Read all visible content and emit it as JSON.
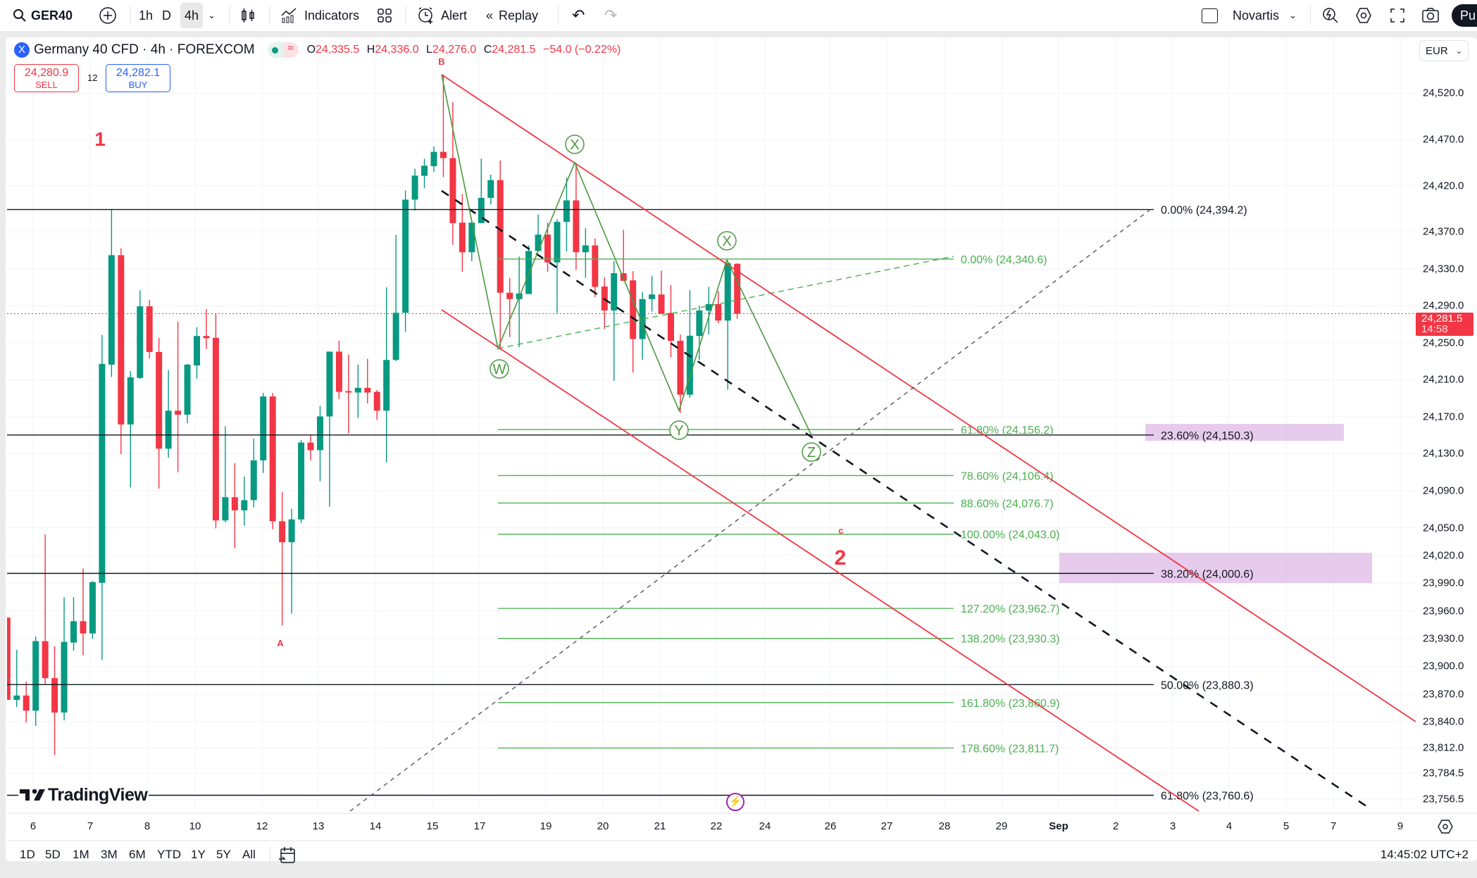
{
  "toolbar": {
    "symbol": "GER40",
    "intervals": [
      "1h",
      "D",
      "4h"
    ],
    "active_interval": "4h",
    "indicators_label": "Indicators",
    "alert_label": "Alert",
    "replay_label": "Replay",
    "watch_name": "Novartis",
    "publish_label": "Pu"
  },
  "legend": {
    "title": "Germany 40 CFD · 4h · FOREXCOM",
    "open_k": "O",
    "open": "24,335.5",
    "high_k": "H",
    "high": "24,336.0",
    "low_k": "L",
    "low": "24,276.0",
    "close_k": "C",
    "close": "24,281.5",
    "change": "−54.0 (−0.22%)"
  },
  "trade": {
    "sell_price": "24,280.9",
    "sell_label": "SELL",
    "spread": "12",
    "buy_price": "24,282.1",
    "buy_label": "BUY"
  },
  "price_axis": {
    "currency": "EUR",
    "current_price": "24,281.5",
    "countdown": "14:58"
  },
  "annotations": {
    "wave_1": "1",
    "wave_2": "2",
    "label_a": "A",
    "label_b": "B",
    "label_c": "c",
    "wxy": [
      "X",
      "W",
      "Y",
      "X",
      "Z"
    ]
  },
  "fib_green": [
    {
      "label": "0.00% (24,340.6)",
      "price": 24340.6
    },
    {
      "label": "61.80% (24,156.2)",
      "price": 24156.2
    },
    {
      "label": "78.60% (24,106.4)",
      "price": 24106.4
    },
    {
      "label": "88.60% (24,076.7)",
      "price": 24076.7
    },
    {
      "label": "100.00% (24,043.0)",
      "price": 24043.0
    },
    {
      "label": "127.20% (23,962.7)",
      "price": 23962.7
    },
    {
      "label": "138.20% (23,930.3)",
      "price": 23930.3
    },
    {
      "label": "161.80% (23,860.9)",
      "price": 23860.9
    },
    {
      "label": "178.60% (23,811.7)",
      "price": 23811.7
    }
  ],
  "fib_black": [
    {
      "label": "0.00% (24,394.2)",
      "price": 24394.2
    },
    {
      "label": "23.60% (24,150.3)",
      "price": 24150.3,
      "highlight": true
    },
    {
      "label": "38.20% (24,000.6)",
      "price": 24000.6,
      "highlight": true
    },
    {
      "label": "50.00% (23,880.3)",
      "price": 23880.3
    },
    {
      "label": "61.80% (23,760.6)",
      "price": 23760.6
    }
  ],
  "colors": {
    "up": "#089981",
    "down": "#f23645",
    "fib_green": "#4caf50",
    "channel": "#f23645",
    "highlight": "#e1bee7"
  },
  "branding": "TradingView",
  "bottom": {
    "ranges": [
      "1D",
      "5D",
      "1M",
      "3M",
      "6M",
      "YTD",
      "1Y",
      "5Y",
      "All"
    ],
    "clock": "14:45:02 UTC+2"
  },
  "chart_data": {
    "type": "candlestick",
    "title": "Germany 40 CFD · 4h · FOREXCOM",
    "x_tick_labels": [
      "6",
      "7",
      "8",
      "10",
      "12",
      "13",
      "14",
      "15",
      "17",
      "19",
      "20",
      "21",
      "22",
      "24",
      "26",
      "27",
      "28",
      "29",
      "Sep",
      "2",
      "3",
      "4",
      "5",
      "7",
      "9"
    ],
    "y_ticks": [
      24520.0,
      24470.0,
      24420.0,
      24370.0,
      24330.0,
      24290.0,
      24250.0,
      24210.0,
      24170.0,
      24130.0,
      24090.0,
      24050.0,
      24020.0,
      23990.0,
      23960.0,
      23930.0,
      23900.0,
      23870.0,
      23840.0,
      23812.0,
      23784.5,
      23756.5
    ],
    "y_tick_labels": [
      "24,520.0",
      "24,470.0",
      "24,420.0",
      "24,370.0",
      "24,330.0",
      "24,290.0",
      "24,250.0",
      "24,210.0",
      "24,170.0",
      "24,130.0",
      "24,090.0",
      "24,050.0",
      "24,020.0",
      "23,990.0",
      "23,960.0",
      "23,930.0",
      "23,900.0",
      "23,870.0",
      "23,840.0",
      "23,812.0",
      "23,784.5",
      "23,756.5"
    ],
    "ylim": [
      23740,
      24545
    ],
    "grid": true,
    "ohlc": [
      [
        23952.8,
        23952.8,
        23863.8,
        23863.8
      ],
      [
        23863.8,
        23917.9,
        23856.0,
        23868.5
      ],
      [
        23868.5,
        23883.4,
        23839.5,
        23852.1
      ],
      [
        23852.1,
        23932.4,
        23835.6,
        23927.3
      ],
      [
        23927.3,
        24043.0,
        23880.7,
        23887.3
      ],
      [
        23887.3,
        23921.8,
        23804.2,
        23850.1
      ],
      [
        23850.1,
        23974.8,
        23841.5,
        23926.5
      ],
      [
        23925.8,
        23974.8,
        23917.1,
        23948.9
      ],
      [
        23948.9,
        24006.1,
        23912.0,
        23935.6
      ],
      [
        23935.6,
        23992.4,
        23929.7,
        23991.2
      ],
      [
        23990.4,
        24258.6,
        23906.9,
        24227.2
      ],
      [
        24226.4,
        24394.2,
        24213.1,
        24344.8
      ],
      [
        24344.8,
        24352.3,
        24129.6,
        24161.7
      ],
      [
        24161.7,
        24219.4,
        24093.5,
        24212.7
      ],
      [
        24212.0,
        24306.8,
        24211.1,
        24289.5
      ],
      [
        24289.5,
        24296.6,
        24233.1,
        24240.1
      ],
      [
        24240.1,
        24255.4,
        24092.4,
        24135.5
      ],
      [
        24135.5,
        24220.5,
        24125.7,
        24176.6
      ],
      [
        24176.6,
        24272.7,
        24110.0,
        24172.3
      ],
      [
        24172.3,
        24227.2,
        24162.9,
        24226.4
      ],
      [
        24225.6,
        24266.8,
        24211.1,
        24257.4
      ],
      [
        24257.4,
        24286.4,
        24243.3,
        24255.0
      ],
      [
        24255.4,
        24281.7,
        24049.2,
        24057.9
      ],
      [
        24057.9,
        24159.8,
        24055.9,
        24083.0
      ],
      [
        24083.0,
        24119.8,
        24027.7,
        24068.8
      ],
      [
        24068.8,
        24105.3,
        24052.4,
        24079.8
      ],
      [
        24079.8,
        24146.5,
        24072.0,
        24122.9
      ],
      [
        24122.9,
        24195.8,
        24109.2,
        24192.0
      ],
      [
        24192.0,
        24195.8,
        24048.5,
        24057.0
      ],
      [
        24057.0,
        24088.4,
        23944.2,
        24034.3
      ],
      [
        24034.3,
        24070.4,
        23957.1,
        24059.0
      ],
      [
        24059.0,
        24144.9,
        24055.1,
        24142.1
      ],
      [
        24142.1,
        24150.4,
        24122.9,
        24133.9
      ],
      [
        24133.9,
        24181.7,
        24100.2,
        24170.4
      ],
      [
        24170.4,
        24240.5,
        24072.8,
        24240.5
      ],
      [
        24240.5,
        24252.3,
        24189.2,
        24197.0
      ],
      [
        24197.8,
        24237.4,
        24151.9,
        24196.2
      ],
      [
        24196.2,
        24226.4,
        24168.8,
        24201.3
      ],
      [
        24201.3,
        24232.7,
        24184.5,
        24196.2
      ],
      [
        24197.0,
        24199.0,
        24166.8,
        24176.6
      ],
      [
        24176.6,
        24309.9,
        24120.6,
        24231.5
      ],
      [
        24231.5,
        24366.9,
        24230.3,
        24282.5
      ],
      [
        24282.5,
        24414.8,
        24261.8,
        24404.9
      ],
      [
        24404.9,
        24438.3,
        24393.1,
        24430.9
      ],
      [
        24430.7,
        24449.2,
        24417.2,
        24441.6
      ],
      [
        24441.1,
        24462.4,
        24435.0,
        24456.6
      ],
      [
        24456.6,
        24540.4,
        24429.3,
        24449.8
      ],
      [
        24449.8,
        24510.3,
        24356.2,
        24379.5
      ],
      [
        24380.0,
        24410.9,
        24326.9,
        24348.0
      ],
      [
        24348.0,
        24382.7,
        24338.4,
        24380.0
      ],
      [
        24379.5,
        24449.2,
        24379.5,
        24406.8
      ],
      [
        24406.8,
        24432.0,
        24399.7,
        24426.0
      ],
      [
        24426.0,
        24447.3,
        24242.6,
        24304.2
      ],
      [
        24304.2,
        24320.3,
        24256.3,
        24297.3
      ],
      [
        24297.3,
        24343.3,
        24245.4,
        24303.4
      ],
      [
        24302.8,
        24355.4,
        24302.8,
        24349.4
      ],
      [
        24349.4,
        24388.8,
        24349.4,
        24367.1
      ],
      [
        24367.1,
        24380.0,
        24326.9,
        24337.0
      ],
      [
        24337.0,
        24383.6,
        24282.3,
        24380.8
      ],
      [
        24380.8,
        24428.7,
        24348.8,
        24404.1
      ],
      [
        24404.1,
        24443.8,
        24328.8,
        24348.0
      ],
      [
        24348.0,
        24374.0,
        24320.3,
        24355.4
      ],
      [
        24355.4,
        24363.0,
        24299.5,
        24310.5
      ],
      [
        24310.9,
        24320.6,
        24265.0,
        24285.0
      ],
      [
        24285.0,
        24338.4,
        24209.0,
        24325.3
      ],
      [
        24325.3,
        24372.3,
        24317.1,
        24317.1
      ],
      [
        24317.6,
        24327.5,
        24218.0,
        24254.1
      ],
      [
        24254.1,
        24305.0,
        24231.6,
        24297.3
      ],
      [
        24297.3,
        24322.5,
        24283.7,
        24302.3
      ],
      [
        24302.3,
        24328.0,
        24281.0,
        24281.5
      ],
      [
        24282.3,
        24312.4,
        24234.4,
        24252.2
      ],
      [
        24252.2,
        24259.0,
        24174.2,
        24193.9
      ],
      [
        24193.9,
        24306.9,
        24190.6,
        24257.7
      ],
      [
        24257.4,
        24290.5,
        24231.6,
        24285.0
      ],
      [
        24285.0,
        24310.5,
        24259.0,
        24291.9
      ],
      [
        24291.9,
        24306.1,
        24271.3,
        24274.1
      ],
      [
        24274.1,
        24338.9,
        24199.3,
        24336.2
      ],
      [
        24335.5,
        24336.0,
        24276.0,
        24281.5
      ]
    ]
  }
}
